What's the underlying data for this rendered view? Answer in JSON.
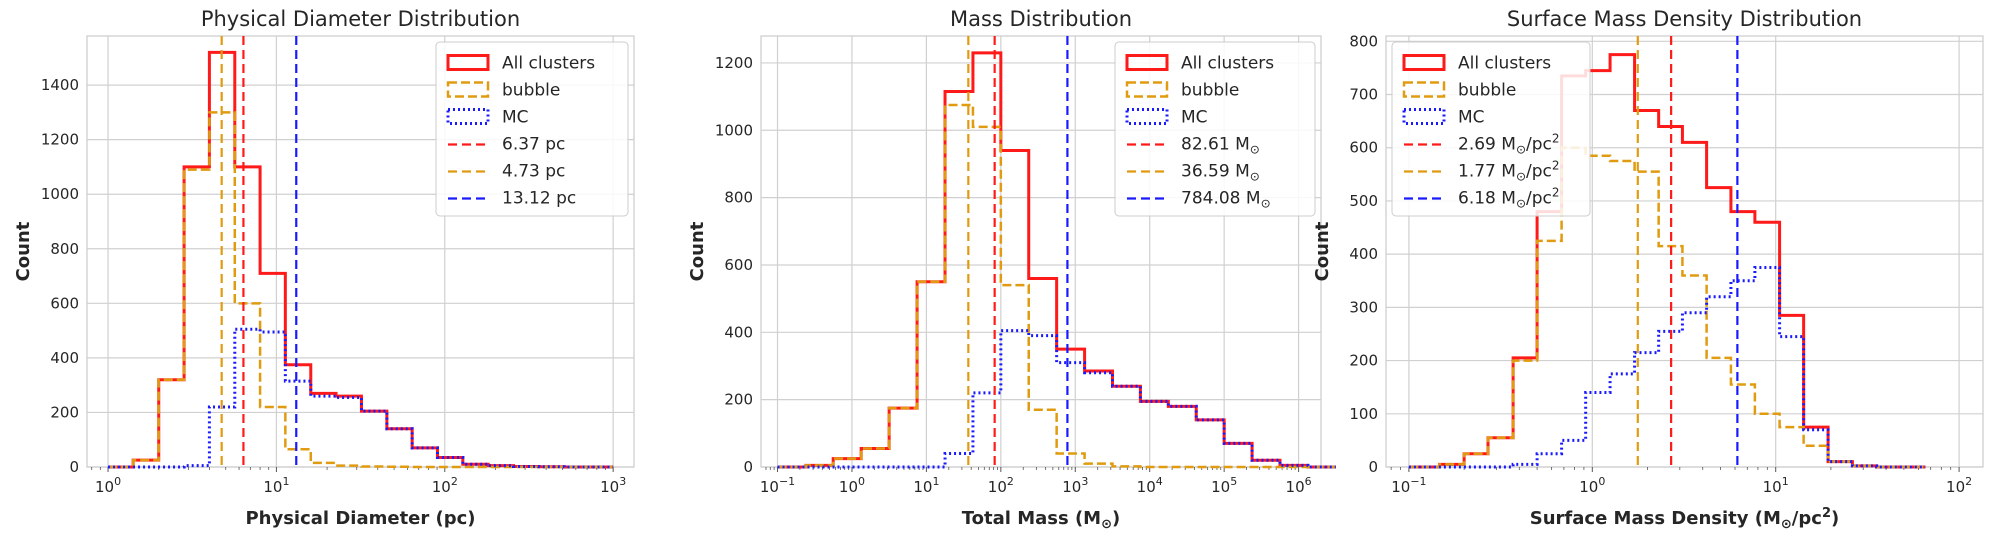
{
  "chart_data": [
    {
      "type": "histogram",
      "title": "Physical Diameter Distribution",
      "xlabel": "Physical Diameter (pc)",
      "ylabel": "Count",
      "xscale": "log",
      "xlim": [
        0.75,
        1330
      ],
      "ylim": [
        0,
        1580
      ],
      "xticks": [
        {
          "v": 1,
          "label": "10",
          "sup": "0"
        },
        {
          "v": 10,
          "label": "10",
          "sup": "1"
        },
        {
          "v": 100,
          "label": "10",
          "sup": "2"
        },
        {
          "v": 1000,
          "label": "10",
          "sup": "3"
        }
      ],
      "yticks": [
        0,
        200,
        400,
        600,
        800,
        1000,
        1200,
        1400
      ],
      "bin_edges": [
        1.0,
        1.41,
        2.0,
        2.83,
        4.0,
        5.66,
        8.0,
        11.3,
        16.0,
        22.6,
        32.0,
        45.3,
        64.0,
        90.5,
        128,
        181,
        256,
        362,
        512,
        724,
        1000
      ],
      "legend_position": "top-right",
      "series": [
        {
          "name": "All clusters",
          "style": "solid",
          "color": "#ff1a1a",
          "counts": [
            0,
            25,
            320,
            1100,
            1520,
            1100,
            710,
            375,
            270,
            260,
            205,
            140,
            70,
            35,
            10,
            5,
            2,
            1,
            0,
            0
          ]
        },
        {
          "name": "bubble",
          "style": "dashed",
          "color": "#e09b10",
          "counts": [
            0,
            25,
            320,
            1090,
            1300,
            600,
            220,
            65,
            15,
            5,
            2,
            1,
            0,
            0,
            0,
            0,
            0,
            0,
            0,
            0
          ]
        },
        {
          "name": "MC",
          "style": "dotted",
          "color": "#1a1aff",
          "counts": [
            0,
            0,
            0,
            5,
            220,
            505,
            495,
            315,
            260,
            255,
            205,
            140,
            70,
            35,
            10,
            5,
            2,
            1,
            0,
            0
          ]
        }
      ],
      "vlines": [
        {
          "label": "6.37 pc",
          "value": 6.37,
          "color": "#ff1a1a"
        },
        {
          "label": "4.73 pc",
          "value": 4.73,
          "color": "#e09b10"
        },
        {
          "label": "13.12 pc",
          "value": 13.12,
          "color": "#1a1aff"
        }
      ]
    },
    {
      "type": "histogram",
      "title": "Mass Distribution",
      "xlabel": "Total Mass (M",
      "xlabel_sub": "⊙",
      "xlabel_tail": ")",
      "ylabel": "Count",
      "xscale": "log",
      "xlim": [
        0.06,
        2000000
      ],
      "ylim": [
        0,
        1280
      ],
      "xticks": [
        {
          "v": 0.1,
          "label": "10",
          "sup": "−1"
        },
        {
          "v": 1,
          "label": "10",
          "sup": "0"
        },
        {
          "v": 10,
          "label": "10",
          "sup": "1"
        },
        {
          "v": 100,
          "label": "10",
          "sup": "2"
        },
        {
          "v": 1000,
          "label": "10",
          "sup": "3"
        },
        {
          "v": 10000,
          "label": "10",
          "sup": "4"
        },
        {
          "v": 100000,
          "label": "10",
          "sup": "5"
        },
        {
          "v": 1000000,
          "label": "10",
          "sup": "6"
        }
      ],
      "yticks": [
        0,
        200,
        400,
        600,
        800,
        1000,
        1200
      ],
      "bin_edges": [
        0.1,
        0.24,
        0.56,
        1.33,
        3.16,
        7.5,
        17.8,
        42.2,
        100,
        237,
        562,
        1334,
        3162,
        7499,
        17783,
        42170,
        100000,
        237137,
        562341,
        1333521,
        3162278
      ],
      "legend_position": "top-right",
      "series": [
        {
          "name": "All clusters",
          "style": "solid",
          "color": "#ff1a1a",
          "counts": [
            0,
            5,
            25,
            55,
            175,
            550,
            1115,
            1230,
            940,
            560,
            350,
            285,
            240,
            195,
            180,
            140,
            70,
            20,
            5,
            0
          ]
        },
        {
          "name": "bubble",
          "style": "dashed",
          "color": "#e09b10",
          "counts": [
            0,
            5,
            25,
            55,
            175,
            550,
            1075,
            1010,
            540,
            170,
            40,
            10,
            2,
            0,
            0,
            0,
            0,
            0,
            0,
            0
          ]
        },
        {
          "name": "MC",
          "style": "dotted",
          "color": "#1a1aff",
          "counts": [
            0,
            0,
            0,
            0,
            0,
            0,
            40,
            220,
            405,
            390,
            310,
            280,
            240,
            195,
            180,
            140,
            70,
            20,
            5,
            0
          ]
        }
      ],
      "vlines": [
        {
          "label": "82.61 M",
          "sub": "⊙",
          "value": 82.61,
          "color": "#ff1a1a"
        },
        {
          "label": "36.59 M",
          "sub": "⊙",
          "value": 36.59,
          "color": "#e09b10"
        },
        {
          "label": "784.08 M",
          "sub": "⊙",
          "value": 784.08,
          "color": "#1a1aff"
        }
      ]
    },
    {
      "type": "histogram",
      "title": "Surface Mass Density Distribution",
      "xlabel": "Surface Mass Density (M",
      "xlabel_sub": "⊙",
      "xlabel_tail": "/pc",
      "xlabel_sup": "2",
      "xlabel_end": ")",
      "ylabel": "Count",
      "xscale": "log",
      "xlim": [
        0.075,
        135
      ],
      "ylim": [
        0,
        810
      ],
      "xticks": [
        {
          "v": 0.1,
          "label": "10",
          "sup": "−1"
        },
        {
          "v": 1,
          "label": "10",
          "sup": "0"
        },
        {
          "v": 10,
          "label": "10",
          "sup": "1"
        },
        {
          "v": 100,
          "label": "10",
          "sup": "2"
        }
      ],
      "yticks": [
        0,
        100,
        200,
        300,
        400,
        500,
        600,
        700,
        800
      ],
      "bin_edges": [
        0.1,
        0.147,
        0.2,
        0.27,
        0.37,
        0.5,
        0.68,
        0.92,
        1.25,
        1.7,
        2.3,
        3.1,
        4.2,
        5.7,
        7.7,
        10.5,
        14.2,
        19.3,
        26.2,
        35.5,
        48.2,
        65.4
      ],
      "legend_position": "top-left",
      "series": [
        {
          "name": "All clusters",
          "style": "solid",
          "color": "#ff1a1a",
          "counts": [
            0,
            5,
            25,
            55,
            205,
            480,
            735,
            745,
            775,
            670,
            640,
            610,
            525,
            480,
            460,
            285,
            75,
            10,
            2,
            0,
            0
          ]
        },
        {
          "name": "bubble",
          "style": "dashed",
          "color": "#e09b10",
          "counts": [
            0,
            5,
            25,
            55,
            200,
            425,
            600,
            585,
            575,
            555,
            415,
            360,
            205,
            155,
            100,
            75,
            40,
            10,
            2,
            0,
            0
          ]
        },
        {
          "name": "MC",
          "style": "dotted",
          "color": "#1a1aff",
          "counts": [
            0,
            0,
            0,
            0,
            5,
            25,
            50,
            140,
            175,
            215,
            255,
            290,
            320,
            350,
            375,
            245,
            70,
            10,
            2,
            0,
            0
          ]
        }
      ],
      "vlines": [
        {
          "label": "2.69 M",
          "sub": "⊙",
          "tail": "/pc",
          "sup": "2",
          "value": 2.69,
          "color": "#ff1a1a"
        },
        {
          "label": "1.77 M",
          "sub": "⊙",
          "tail": "/pc",
          "sup": "2",
          "value": 1.77,
          "color": "#e09b10"
        },
        {
          "label": "6.18 M",
          "sub": "⊙",
          "tail": "/pc",
          "sup": "2",
          "value": 6.18,
          "color": "#1a1aff"
        }
      ]
    }
  ]
}
